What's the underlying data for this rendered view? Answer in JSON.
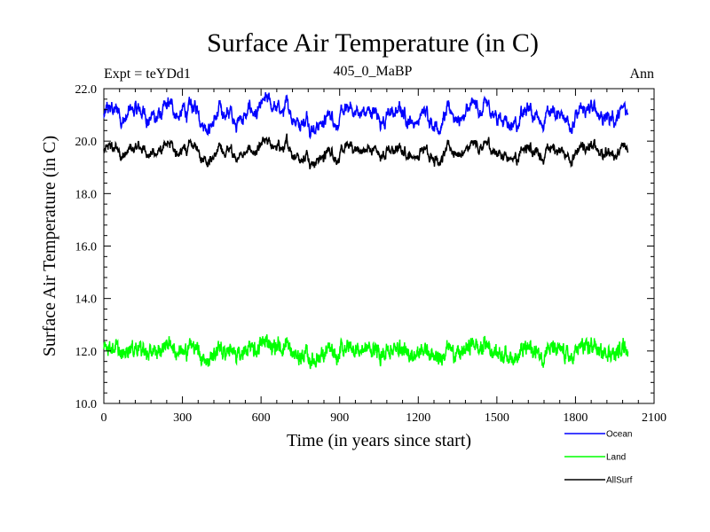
{
  "chart_data": {
    "type": "line",
    "title": "Surface Air Temperature (in C)",
    "experiment_label": "Expt = teYDd1",
    "subtitle": "405_0_MaBP",
    "season_label": "Ann",
    "xlabel": "Time (in years since start)",
    "ylabel": "Surface Air Temperature (in C)",
    "xlim": [
      0,
      2100
    ],
    "ylim": [
      10.0,
      22.0
    ],
    "xticks": [
      0,
      300,
      600,
      900,
      1200,
      1500,
      1800,
      2100
    ],
    "xtick_labels": [
      "0",
      "300",
      "600",
      "900",
      "1200",
      "1500",
      "1800",
      "2100"
    ],
    "yticks": [
      10,
      12,
      14,
      16,
      18,
      20,
      22
    ],
    "ytick_labels": [
      "10.0",
      "12.0",
      "14.0",
      "16.0",
      "18.0",
      "20.0",
      "22.0"
    ],
    "grid": false,
    "legend_position": "below-right",
    "series": [
      {
        "name": "Ocean",
        "color": "#0000ff",
        "x": [
          0,
          2000
        ],
        "mean": 21.0,
        "amplitude": 0.35,
        "noise": 0.12
      },
      {
        "name": "Land",
        "color": "#00ff00",
        "x": [
          0,
          2000
        ],
        "mean": 12.0,
        "amplitude": 0.2,
        "noise": 0.28
      },
      {
        "name": "AllSurf",
        "color": "#000000",
        "x": [
          0,
          2000
        ],
        "mean": 19.6,
        "amplitude": 0.25,
        "noise": 0.1
      }
    ]
  }
}
